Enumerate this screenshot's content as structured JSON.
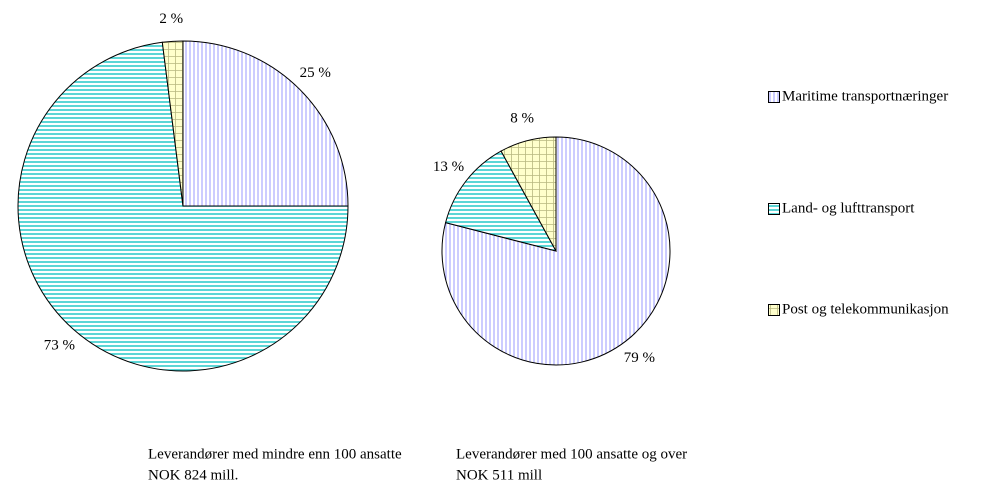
{
  "legend": [
    "Maritime transportnæringer",
    "Land- og lufttransport",
    "Post og telekommunikasjon"
  ],
  "chart_data": [
    {
      "type": "pie",
      "title": "Leverandører med mindre enn 100 ansatte",
      "subtitle": "NOK 824 mill.",
      "values": [
        25,
        73,
        2
      ],
      "value_labels": [
        "25 %",
        "73 %",
        "2 %"
      ],
      "colors": [
        "#9999ff",
        "#33cccc",
        "#ffffcc"
      ]
    },
    {
      "type": "pie",
      "title": "Leverandører med 100 ansatte og over",
      "subtitle": "NOK 511 mill",
      "values": [
        79,
        13,
        8
      ],
      "value_labels": [
        "79 %",
        "13 %",
        "8 %"
      ],
      "colors": [
        "#9999ff",
        "#33cccc",
        "#ffffcc"
      ]
    }
  ]
}
